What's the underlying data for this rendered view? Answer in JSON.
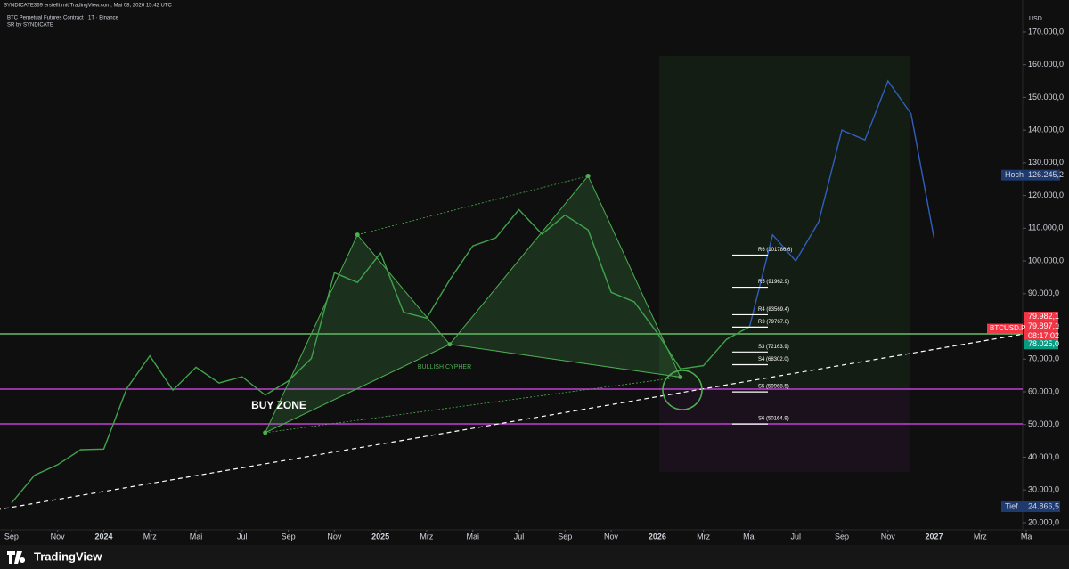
{
  "header": {
    "credit": "SYNDICATE369 erstellt mit TradingView.com, Mai 08, 2026 15:42 UTC",
    "symbol_line": "BTC Perpetual Futures Contract · 1T · Binance",
    "indicator": "SR by SYNDICATE"
  },
  "chart_data": {
    "type": "line",
    "x": [
      "2023-09",
      "2023-10",
      "2023-11",
      "2023-12",
      "2024-01",
      "2024-02",
      "2024-03",
      "2024-04",
      "2024-05",
      "2024-06",
      "2024-07",
      "2024-08",
      "2024-09",
      "2024-10",
      "2024-11",
      "2024-12",
      "2025-01",
      "2025-02",
      "2025-03",
      "2025-04",
      "2025-05",
      "2025-06",
      "2025-07",
      "2025-08",
      "2025-09",
      "2025-10",
      "2025-11",
      "2025-12",
      "2026-01",
      "2026-02",
      "2026-03",
      "2026-04",
      "2026-05",
      "2026-06",
      "2026-07",
      "2026-08",
      "2026-09",
      "2026-10",
      "2026-11",
      "2026-12",
      "2027-01"
    ],
    "series": [
      {
        "name": "BTCUSD.P",
        "color": "#3fa34d",
        "values": [
          26000,
          34500,
          37700,
          42300,
          42500,
          61000,
          71000,
          60500,
          67500,
          62700,
          64600,
          59000,
          63300,
          70200,
          96400,
          93400,
          102400,
          84300,
          82500,
          94200,
          104600,
          107100,
          115700,
          108200,
          114000,
          109500,
          90400,
          87500,
          78000,
          67000,
          68000,
          76000,
          79900,
          null,
          null,
          null,
          null,
          null,
          null,
          null,
          null
        ]
      },
      {
        "name": "Projection",
        "color": "#2f5fbf",
        "values": [
          null,
          null,
          null,
          null,
          null,
          null,
          null,
          null,
          null,
          null,
          null,
          null,
          null,
          null,
          null,
          null,
          null,
          null,
          null,
          null,
          null,
          null,
          null,
          null,
          null,
          null,
          null,
          null,
          null,
          null,
          null,
          null,
          79900,
          108000,
          100000,
          112000,
          140000,
          137000,
          155000,
          145000,
          107000
        ]
      }
    ],
    "xlim": [
      "2023-08",
      "2027-06"
    ],
    "xticks": [
      {
        "value": "2023-09",
        "label": "Sep"
      },
      {
        "value": "2023-11",
        "label": "Nov"
      },
      {
        "value": "2024-01",
        "label": "2024"
      },
      {
        "value": "2024-03",
        "label": "Mrz"
      },
      {
        "value": "2024-05",
        "label": "Mai"
      },
      {
        "value": "2024-07",
        "label": "Jul"
      },
      {
        "value": "2024-09",
        "label": "Sep"
      },
      {
        "value": "2024-11",
        "label": "Nov"
      },
      {
        "value": "2025-01",
        "label": "2025"
      },
      {
        "value": "2025-03",
        "label": "Mrz"
      },
      {
        "value": "2025-05",
        "label": "Mai"
      },
      {
        "value": "2025-07",
        "label": "Jul"
      },
      {
        "value": "2025-09",
        "label": "Sep"
      },
      {
        "value": "2025-11",
        "label": "Nov"
      },
      {
        "value": "2026-01",
        "label": "2026"
      },
      {
        "value": "2026-03",
        "label": "Mrz"
      },
      {
        "value": "2026-05",
        "label": "Mai"
      },
      {
        "value": "2026-07",
        "label": "Jul"
      },
      {
        "value": "2026-09",
        "label": "Sep"
      },
      {
        "value": "2026-11",
        "label": "Nov"
      },
      {
        "value": "2027-01",
        "label": "2027"
      },
      {
        "value": "2027-03",
        "label": "Mrz"
      },
      {
        "value": "2027-05",
        "label": "Ma"
      }
    ],
    "ylim": [
      17800,
      175700
    ],
    "yticks": [
      {
        "value": 20000,
        "label": "20.000,0"
      },
      {
        "value": 30000,
        "label": "30.000,0"
      },
      {
        "value": 40000,
        "label": "40.000,0"
      },
      {
        "value": 50000,
        "label": "50.000,0"
      },
      {
        "value": 60000,
        "label": "60.000,0"
      },
      {
        "value": 70000,
        "label": "70.000,0"
      },
      {
        "value": 80000,
        "label": "80.000,0"
      },
      {
        "value": 90000,
        "label": "90.000,0"
      },
      {
        "value": 100000,
        "label": "100.000,0"
      },
      {
        "value": 110000,
        "label": "110.000,0"
      },
      {
        "value": 120000,
        "label": "120.000,0"
      },
      {
        "value": 130000,
        "label": "130.000,0"
      },
      {
        "value": 140000,
        "label": "140.000,0"
      },
      {
        "value": 150000,
        "label": "150.000,0"
      },
      {
        "value": 160000,
        "label": "160.000,0"
      },
      {
        "value": 170000,
        "label": "170.000,0"
      }
    ],
    "currency": "USD",
    "grid": false,
    "horizontal_lines": [
      {
        "value": 77700,
        "color": "#66bb6a"
      },
      {
        "value": 60800,
        "color": "#c23fd6"
      },
      {
        "value": 50200,
        "color": "#c23fd6"
      }
    ],
    "trendline": {
      "x": [
        "2023-08",
        "2027-06"
      ],
      "values": [
        23500,
        79000
      ],
      "color": "#ffffff"
    },
    "pattern": {
      "name": "BULLISH CYPHER",
      "color": "#4caf50",
      "x": [
        "2024-08",
        "2024-12",
        "2025-04",
        "2025-10",
        "2026-02"
      ],
      "values": [
        47500,
        108000,
        74500,
        126000,
        64500
      ]
    },
    "buy_zone": "BUY ZONE",
    "pivots": [
      {
        "value": 101786.6,
        "label": "R6 (101786.6)"
      },
      {
        "value": 91962.9,
        "label": "R5 (91962.9)"
      },
      {
        "value": 83569.4,
        "label": "R4 (83569.4)"
      },
      {
        "value": 79767.6,
        "label": "R3 (79767.6)"
      },
      {
        "value": 72163.9,
        "label": "S3 (72163.9)"
      },
      {
        "value": 68302.0,
        "label": "S4 (68302.0)"
      },
      {
        "value": 59968.5,
        "label": "S5 (59968.5)"
      },
      {
        "value": 50164.9,
        "label": "S6 (50164.9)"
      }
    ],
    "price_tags": [
      {
        "value": 79982.1,
        "label": "79.982,1",
        "color": "#f23645"
      },
      {
        "value": 79897.1,
        "label": "79.897,1",
        "color": "#f23645"
      },
      {
        "value": 78025.0,
        "label": "78.025,0",
        "color": "#089981"
      }
    ],
    "countdown": "08:17:02",
    "high": {
      "name": "Hoch",
      "value": 126245.2,
      "label": "126.245,2"
    },
    "low": {
      "name": "Tief",
      "value": 24866.5,
      "label": "24.866,5"
    }
  },
  "footer": {
    "brand": "TradingView"
  }
}
